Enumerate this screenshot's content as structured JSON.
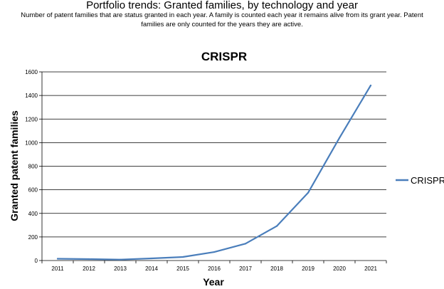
{
  "header": {
    "title": "Portfolio trends: Granted families, by technology and year",
    "subtitle": "Number of patent families that are status granted in each year. A family is counted each year it remains alive from its grant year. Patent families are only counted for the years they are active."
  },
  "chart_data": {
    "type": "line",
    "title": "CRISPR",
    "xlabel": "Year",
    "ylabel": "Granted patent families",
    "x": [
      "2011",
      "2012",
      "2013",
      "2014",
      "2015",
      "2016",
      "2017",
      "2018",
      "2019",
      "2020",
      "2021"
    ],
    "y_ticks": [
      "0",
      "200",
      "400",
      "600",
      "800",
      "1000",
      "1200",
      "1400",
      "1600"
    ],
    "ylim": [
      0,
      1600
    ],
    "grid": true,
    "legend_position": "right",
    "series": [
      {
        "name": "CRISPR",
        "color": "#4a7ebb",
        "values": [
          15,
          12,
          8,
          18,
          30,
          72,
          143,
          292,
          575,
          1040,
          1485
        ]
      }
    ]
  }
}
